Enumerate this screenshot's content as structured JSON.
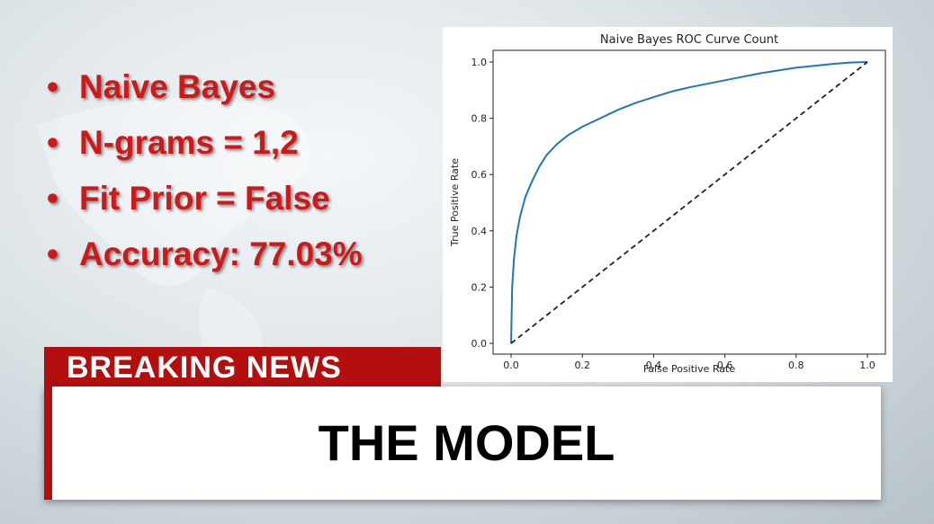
{
  "bullets": {
    "items": [
      "Naive Bayes",
      "N-grams = 1,2",
      "Fit Prior = False",
      "Accuracy: 77.03%"
    ]
  },
  "banner": {
    "label": "BREAKING NEWS",
    "headline": "THE MODEL"
  },
  "colors": {
    "bullet_text": "#cc1a1a",
    "banner_red": "#b40f0f",
    "roc_line": "#1f77b4",
    "diagonal": "#222222"
  },
  "chart_data": {
    "type": "line",
    "title": "Naive Bayes ROC Curve Count",
    "xlabel": "False Positive Rate",
    "ylabel": "True Positive Rate",
    "xlim": [
      0,
      1
    ],
    "ylim": [
      0,
      1
    ],
    "xticks": [
      0.0,
      0.2,
      0.4,
      0.6,
      0.8,
      1.0
    ],
    "yticks": [
      0.0,
      0.2,
      0.4,
      0.6,
      0.8,
      1.0
    ],
    "xtick_labels": [
      "0.0",
      "0.2",
      "0.4",
      "0.6",
      "0.8",
      "1.0"
    ],
    "ytick_labels": [
      "0.0",
      "0.2",
      "0.4",
      "0.6",
      "0.8",
      "1.0"
    ],
    "grid": false,
    "series": [
      {
        "style": "solid",
        "color": "#1f77b4",
        "x": [
          0.0,
          0.003,
          0.008,
          0.015,
          0.025,
          0.04,
          0.06,
          0.08,
          0.1,
          0.13,
          0.16,
          0.2,
          0.25,
          0.3,
          0.35,
          0.4,
          0.45,
          0.5,
          0.6,
          0.7,
          0.8,
          0.9,
          0.95,
          1.0
        ],
        "y": [
          0.0,
          0.2,
          0.3,
          0.38,
          0.45,
          0.52,
          0.58,
          0.63,
          0.67,
          0.71,
          0.74,
          0.77,
          0.8,
          0.83,
          0.855,
          0.875,
          0.895,
          0.91,
          0.935,
          0.96,
          0.98,
          0.993,
          0.998,
          1.0
        ]
      },
      {
        "style": "dashed",
        "color": "#222222",
        "x": [
          0.0,
          1.0
        ],
        "y": [
          0.0,
          1.0
        ]
      }
    ]
  }
}
